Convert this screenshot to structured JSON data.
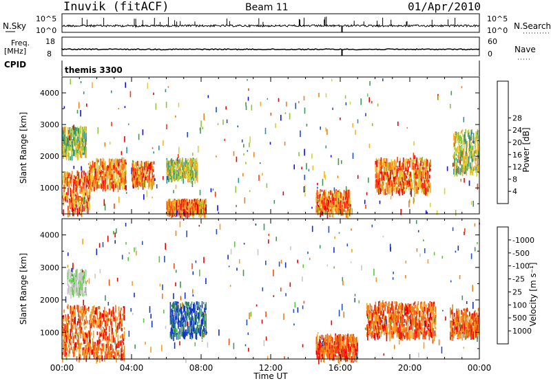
{
  "header": {
    "title": "Inuvik (fitACF)",
    "beam": "Beam 11",
    "date": "01/Apr/2010"
  },
  "noise_panel": {
    "left_label": "N.Sky",
    "right_label": "N.Search",
    "left_ticks": [
      "10^5",
      "10^0"
    ],
    "right_ticks": [
      "10^5",
      "10^0"
    ]
  },
  "freq_panel": {
    "label_line1": "Freq.",
    "label_line2": "[MHz]",
    "ticks": [
      "18",
      "8"
    ],
    "right_label": "Nave",
    "right_ticks": [
      "60",
      "0"
    ]
  },
  "cpid_panel": {
    "label": "CPID",
    "program": "themis 3300"
  },
  "chart_data": [
    {
      "type": "heatmap",
      "title": "",
      "ylabel": "Slant Range [km]",
      "yticks": [
        1000,
        2000,
        3000,
        4000
      ],
      "ylim": [
        180,
        4500
      ],
      "xlim_hours": [
        0,
        24
      ],
      "colorbar": {
        "label": "Power [dB]",
        "ticks": [
          "4",
          "8",
          "12",
          "16",
          "20",
          "24",
          "28"
        ],
        "colors": [
          "#0b0bff",
          "#1f4fc8",
          "#2f8fa0",
          "#3e9b55",
          "#8ac83a",
          "#d8d232",
          "#f7b32a",
          "#f0801c",
          "#ff3a10",
          "#ee0000"
        ]
      },
      "scatter_regions_hours_km": [
        {
          "t": [
            0.0,
            1.6
          ],
          "r": [
            200,
            1500
          ],
          "value": "high"
        },
        {
          "t": [
            0.0,
            1.4
          ],
          "r": [
            2000,
            2900
          ],
          "value": "mid"
        },
        {
          "t": [
            1.5,
            3.7
          ],
          "r": [
            1000,
            1900
          ],
          "value": "high"
        },
        {
          "t": [
            4.0,
            5.3
          ],
          "r": [
            1100,
            1800
          ],
          "value": "high"
        },
        {
          "t": [
            6.0,
            7.8
          ],
          "r": [
            1300,
            1900
          ],
          "value": "mid"
        },
        {
          "t": [
            6.0,
            8.3
          ],
          "r": [
            200,
            600
          ],
          "value": "high"
        },
        {
          "t": [
            14.6,
            16.6
          ],
          "r": [
            200,
            900
          ],
          "value": "high"
        },
        {
          "t": [
            18.0,
            21.2
          ],
          "r": [
            900,
            1900
          ],
          "value": "high"
        },
        {
          "t": [
            22.5,
            24.0
          ],
          "r": [
            1500,
            2800
          ],
          "value": "mid"
        }
      ]
    },
    {
      "type": "heatmap",
      "title": "",
      "ylabel": "Slant Range [km]",
      "yticks": [
        1000,
        2000,
        3000,
        4000
      ],
      "ylim": [
        180,
        4500
      ],
      "xlim_hours": [
        0,
        24
      ],
      "xlabel": "Time UT",
      "xticks": [
        "00:00",
        "04:00",
        "08:00",
        "12:00",
        "16:00",
        "20:00",
        "00:00"
      ],
      "colorbar": {
        "label": "Velocity [m s⁻¹]",
        "ticks": [
          "1000",
          "500",
          "100",
          "25",
          "-25",
          "-100",
          "-500",
          "-1000"
        ],
        "colors": [
          "#1030c8",
          "#2050c8",
          "#3a9b55",
          "#55c83a",
          "#c8c8c8",
          "#f5a020",
          "#f08018",
          "#f05010",
          "#ee0000"
        ]
      },
      "scatter_regions_hours_km": [
        {
          "t": [
            0.0,
            3.6
          ],
          "r": [
            200,
            1800
          ],
          "value": "negative"
        },
        {
          "t": [
            0.3,
            1.4
          ],
          "r": [
            2200,
            2900
          ],
          "value": "ground"
        },
        {
          "t": [
            6.2,
            8.3
          ],
          "r": [
            900,
            1900
          ],
          "value": "positive"
        },
        {
          "t": [
            14.6,
            17.0
          ],
          "r": [
            200,
            900
          ],
          "value": "negative"
        },
        {
          "t": [
            17.5,
            21.5
          ],
          "r": [
            900,
            1900
          ],
          "value": "negative"
        },
        {
          "t": [
            22.3,
            24.0
          ],
          "r": [
            900,
            1700
          ],
          "value": "negative"
        }
      ]
    }
  ]
}
